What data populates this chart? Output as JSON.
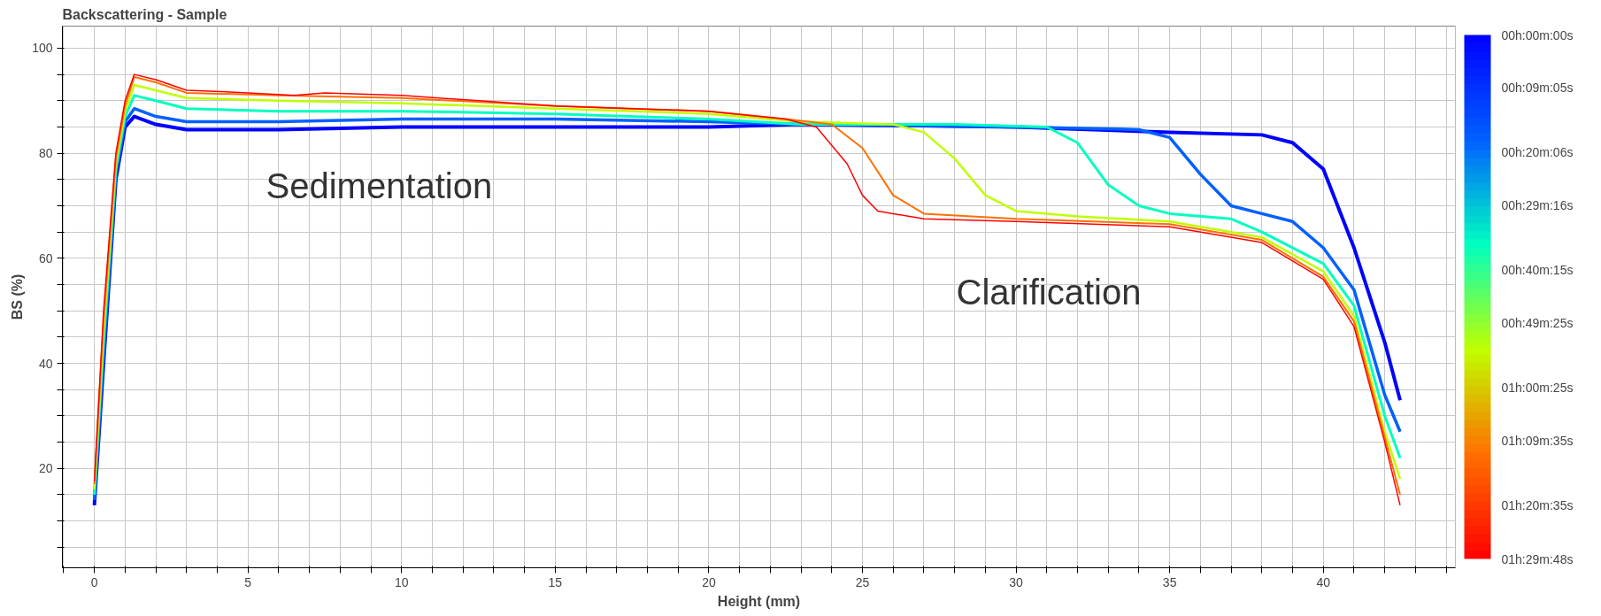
{
  "chart_data": {
    "type": "line",
    "title": "Backscattering - Sample",
    "xlabel": "Height (mm)",
    "ylabel": "BS (%)",
    "xlim": [
      -1.04,
      44.3
    ],
    "ylim": [
      1.1,
      104.2
    ],
    "xticks": [
      {
        "value": -1,
        "label": null
      },
      0,
      {
        "value": 1,
        "label": null
      },
      {
        "value": 2,
        "label": null
      },
      {
        "value": 3,
        "label": null
      },
      {
        "value": 4,
        "label": null
      },
      5,
      {
        "value": 6,
        "label": null
      },
      {
        "value": 7,
        "label": null
      },
      {
        "value": 8,
        "label": null
      },
      {
        "value": 9,
        "label": null
      },
      10,
      {
        "value": 11,
        "label": null
      },
      {
        "value": 12,
        "label": null
      },
      {
        "value": 13,
        "label": null
      },
      {
        "value": 14,
        "label": null
      },
      15,
      {
        "value": 16,
        "label": null
      },
      {
        "value": 17,
        "label": null
      },
      {
        "value": 18,
        "label": null
      },
      {
        "value": 19,
        "label": null
      },
      20,
      {
        "value": 21,
        "label": null
      },
      {
        "value": 22,
        "label": null
      },
      {
        "value": 23,
        "label": null
      },
      {
        "value": 24,
        "label": null
      },
      25,
      {
        "value": 26,
        "label": null
      },
      {
        "value": 27,
        "label": null
      },
      {
        "value": 28,
        "label": null
      },
      {
        "value": 29,
        "label": null
      },
      30,
      {
        "value": 31,
        "label": null
      },
      {
        "value": 32,
        "label": null
      },
      {
        "value": 33,
        "label": null
      },
      {
        "value": 34,
        "label": null
      },
      35,
      {
        "value": 36,
        "label": null
      },
      {
        "value": 37,
        "label": null
      },
      {
        "value": 38,
        "label": null
      },
      {
        "value": 39,
        "label": null
      },
      40,
      {
        "value": 41,
        "label": null
      },
      {
        "value": 42,
        "label": null
      },
      {
        "value": 43,
        "label": null
      },
      {
        "value": 44,
        "label": null
      }
    ],
    "yticks": [
      {
        "value": 5,
        "label": null
      },
      {
        "value": 10,
        "label": null
      },
      {
        "value": 15,
        "label": null
      },
      20,
      {
        "value": 25,
        "label": null
      },
      {
        "value": 30,
        "label": null
      },
      {
        "value": 35,
        "label": null
      },
      40,
      {
        "value": 45,
        "label": null
      },
      {
        "value": 50,
        "label": null
      },
      {
        "value": 55,
        "label": null
      },
      60,
      {
        "value": 65,
        "label": null
      },
      {
        "value": 70,
        "label": null
      },
      {
        "value": 75,
        "label": null
      },
      80,
      {
        "value": 85,
        "label": null
      },
      {
        "value": 90,
        "label": null
      },
      {
        "value": 95,
        "label": null
      },
      100
    ],
    "grid": true,
    "marker": "none",
    "line_style": "solid",
    "clim": [
      1.4967,
      0
    ],
    "cticks": [
      {
        "value": 0,
        "label": "00h:00m:00s"
      },
      {
        "value": 0.1514,
        "label": "00h:09m:05s"
      },
      {
        "value": 0.335,
        "label": "00h:20m:06s"
      },
      {
        "value": 0.4878,
        "label": "00h:29m:16s"
      },
      {
        "value": 0.6708,
        "label": "00h:40m:15s"
      },
      {
        "value": 0.8236,
        "label": "00h:49m:25s"
      },
      {
        "value": 1.0069,
        "label": "01h:00m:25s"
      },
      {
        "value": 1.1597,
        "label": "01h:09m:35s"
      },
      {
        "value": 1.3431,
        "label": "01h:20m:35s"
      },
      {
        "value": 1.4967,
        "label": "01h:29m:48s"
      }
    ],
    "annotations": [
      "Sedimentation",
      "Clarification"
    ],
    "series": [
      {
        "color": "#0000ff",
        "x": [
          0,
          0.3,
          0.7,
          1,
          1.3,
          2,
          3,
          6,
          10,
          20,
          23,
          30,
          35,
          38,
          39,
          40,
          41,
          42,
          42.5
        ],
        "values": [
          13,
          40,
          75,
          85,
          87,
          85.5,
          84.5,
          84.5,
          85,
          85,
          85.5,
          85,
          84,
          83.5,
          82,
          77,
          62,
          44,
          33
        ]
      },
      {
        "color": "#0060ff",
        "x": [
          0,
          0.3,
          0.7,
          1,
          1.3,
          2,
          3,
          6,
          10,
          15,
          20,
          23,
          30,
          34,
          35,
          36,
          37,
          38,
          39,
          40,
          41,
          42,
          42.5
        ],
        "values": [
          14,
          42,
          76,
          86,
          88.5,
          87,
          86,
          86,
          86.5,
          86.5,
          86,
          85.5,
          85,
          84.5,
          83,
          76,
          70,
          68.5,
          67,
          62,
          54,
          34,
          27
        ]
      },
      {
        "color": "#00ffc0",
        "x": [
          0,
          0.3,
          0.7,
          1,
          1.3,
          2,
          3,
          6,
          10,
          15,
          20,
          23,
          28,
          31,
          32,
          33,
          34,
          35,
          37,
          38,
          40,
          41,
          42,
          42.5
        ],
        "values": [
          15,
          44,
          77,
          87,
          91,
          90,
          88.5,
          88,
          88,
          87.5,
          86.5,
          85.5,
          85.5,
          85,
          82,
          74,
          70,
          68.5,
          67.5,
          65,
          59,
          51,
          30,
          22
        ]
      },
      {
        "color": "#c0ff00",
        "x": [
          0,
          0.3,
          0.7,
          1,
          1.3,
          2,
          3,
          6,
          10,
          15,
          20,
          23,
          26,
          27,
          28,
          29,
          30,
          32,
          35,
          38,
          40,
          41,
          42,
          42.5
        ],
        "values": [
          16,
          46,
          78,
          88,
          93,
          92,
          90.5,
          90,
          89.5,
          88.5,
          87.5,
          86,
          85.5,
          84,
          79,
          72,
          69,
          68,
          67,
          64,
          57.5,
          49,
          27,
          18
        ]
      },
      {
        "color": "#ff7000",
        "x": [
          0,
          0.3,
          0.7,
          1,
          1.3,
          2,
          3,
          6,
          10,
          15,
          20,
          22.5,
          24,
          25,
          26,
          27,
          30,
          35,
          38,
          40,
          41,
          42,
          42.5
        ],
        "values": [
          17,
          48,
          79,
          89,
          94.5,
          93.5,
          91.5,
          91,
          90.5,
          89,
          88,
          86.5,
          85.5,
          81,
          72,
          68.5,
          67.5,
          66.5,
          63.5,
          56.5,
          48,
          26,
          15
        ]
      },
      {
        "color": "#ff0000",
        "x": [
          0,
          0.3,
          0.7,
          1,
          1.3,
          2,
          3,
          5,
          6.5,
          7.5,
          10,
          15,
          20,
          22.5,
          23.5,
          24.5,
          25,
          25.5,
          27,
          30,
          35,
          38,
          40,
          41,
          42,
          42.5
        ],
        "values": [
          17.5,
          50,
          80,
          90,
          95,
          94,
          92,
          91.5,
          91,
          91.5,
          91,
          89,
          88,
          86.5,
          85,
          78,
          72,
          69,
          67.5,
          67,
          66,
          63,
          56,
          47,
          25,
          13
        ]
      }
    ]
  }
}
